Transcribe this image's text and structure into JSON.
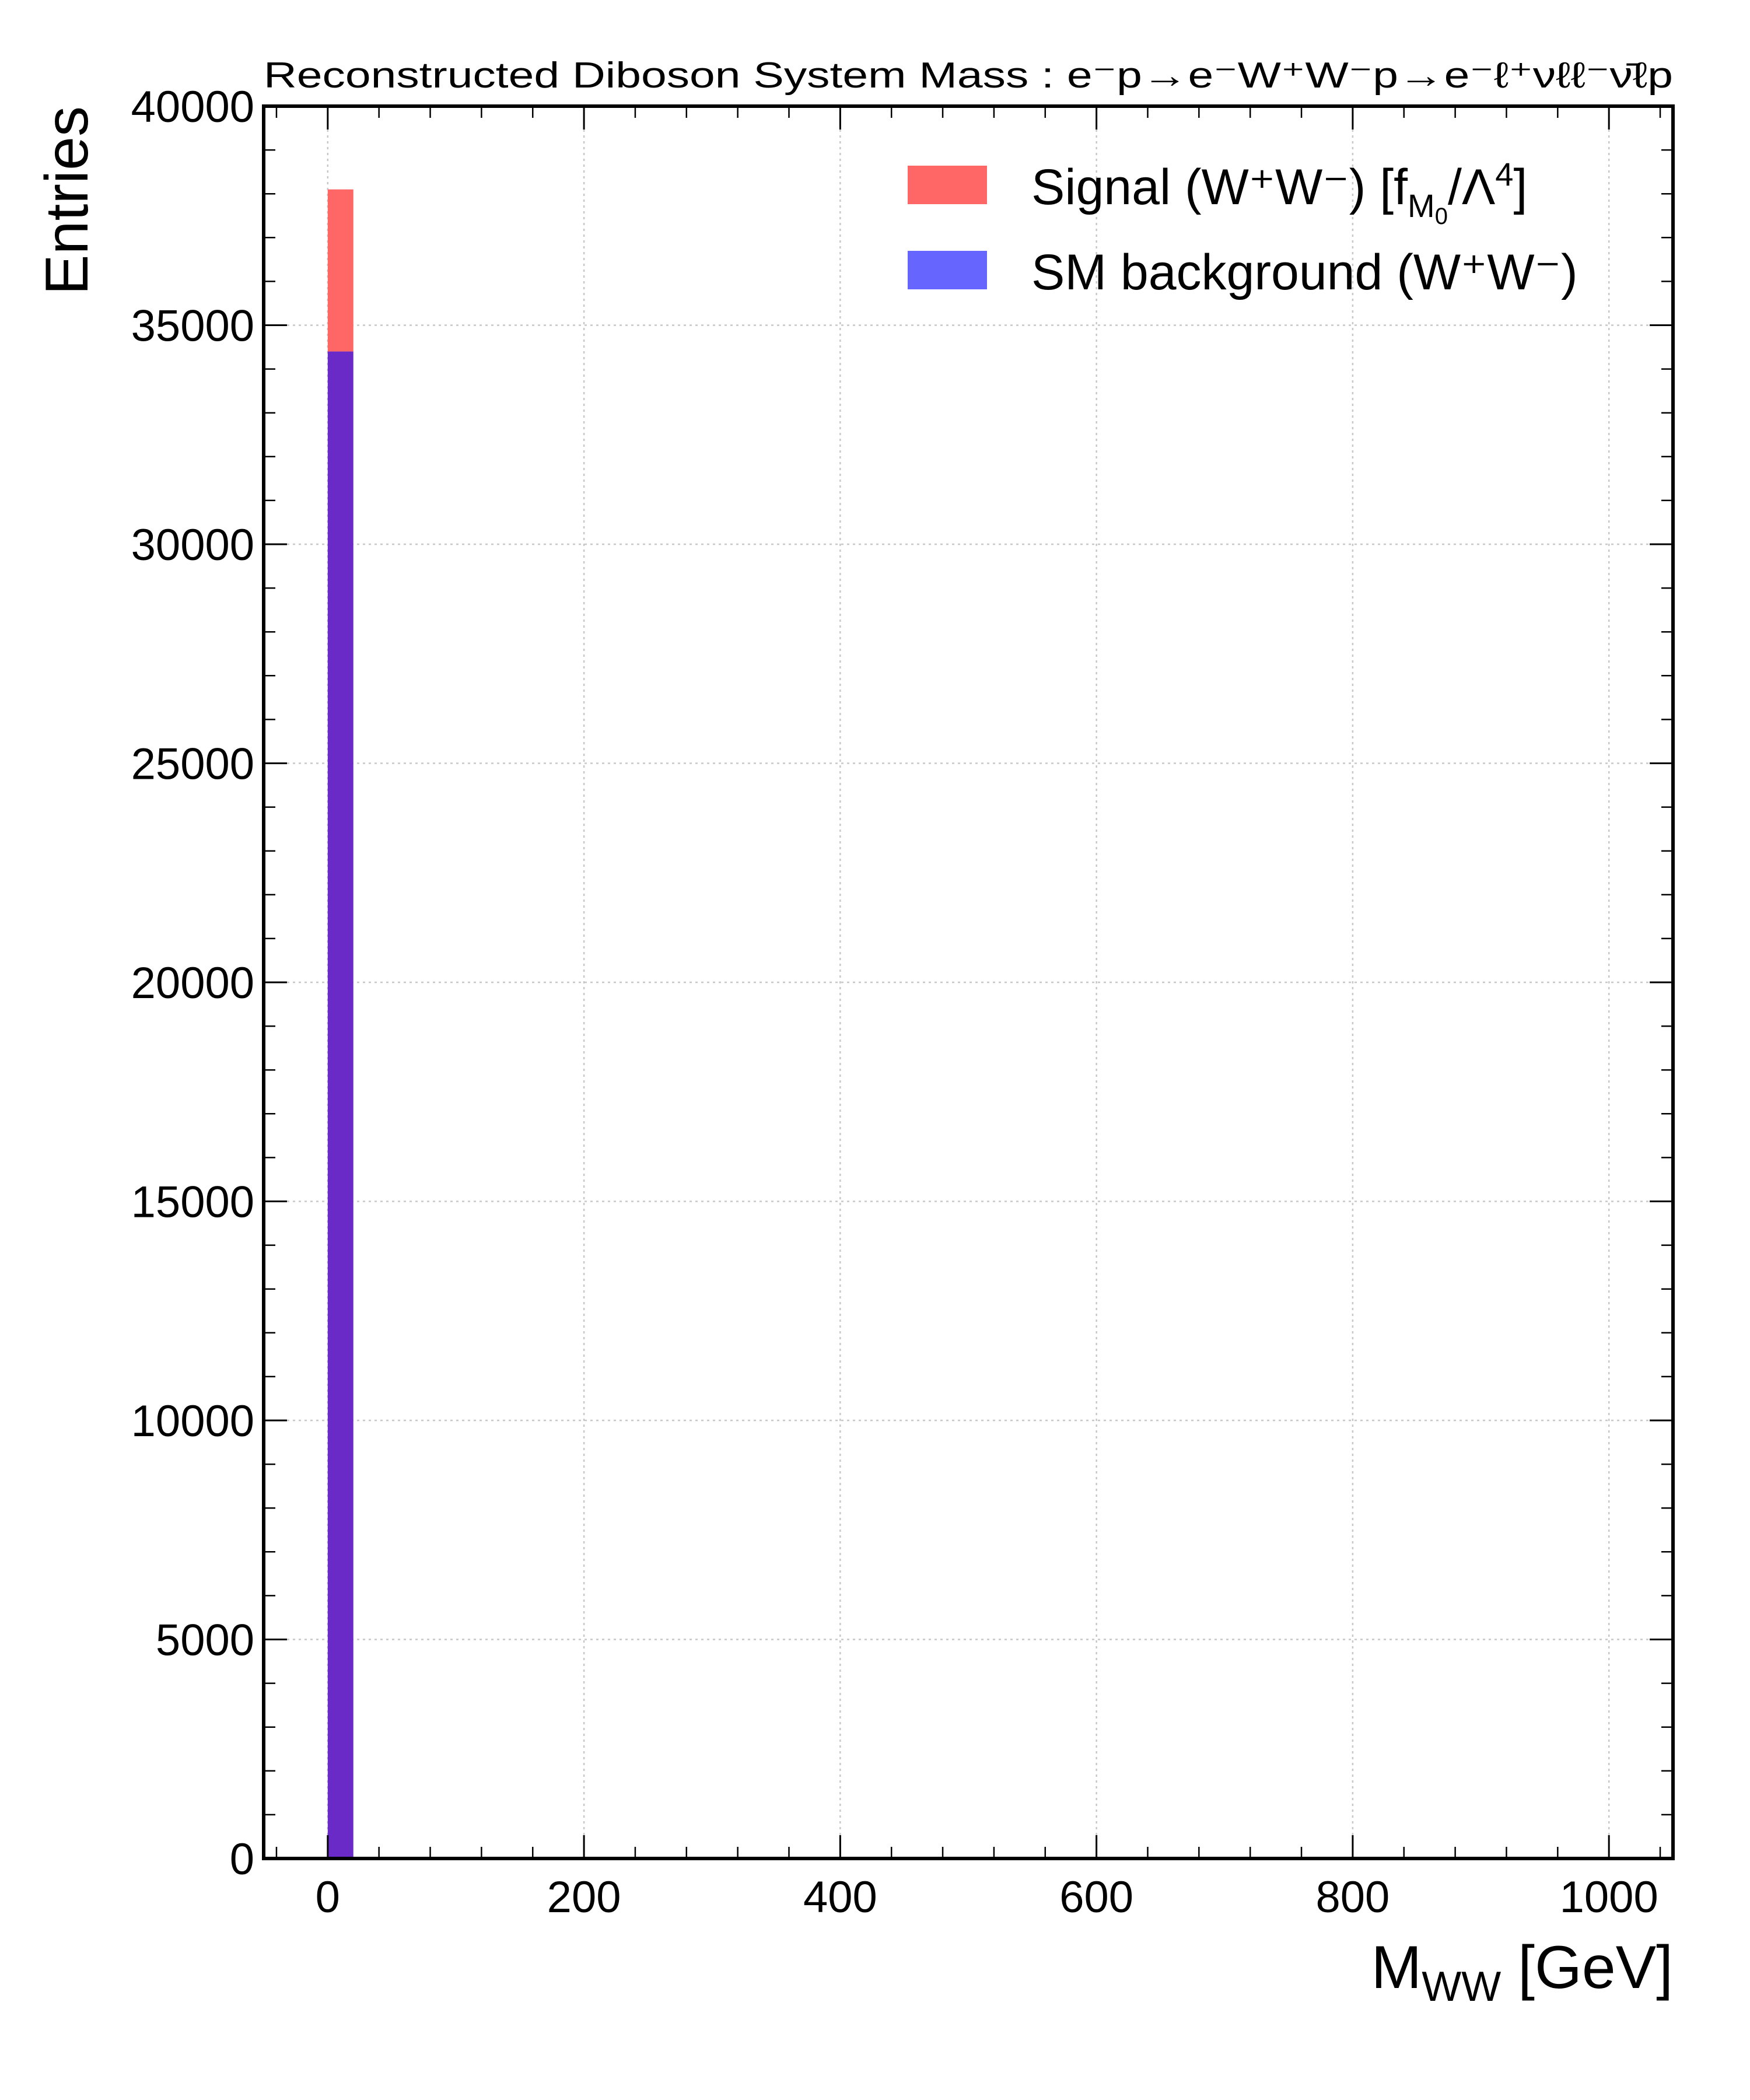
{
  "chart_data": {
    "type": "bar",
    "title": "Reconstructed Diboson System Mass : e⁻p→e⁻W⁺W⁻p→e⁻ℓ⁺νℓℓ⁻ν̄ℓp",
    "xlabel": "M_WW [GeV]",
    "xlabel_main": "M",
    "xlabel_sub": "WW",
    "xlabel_unit": " [GeV]",
    "ylabel": "Entries",
    "xlim": [
      -50,
      1050
    ],
    "ylim": [
      0,
      40000
    ],
    "x_ticks": [
      0,
      200,
      400,
      600,
      800,
      1000
    ],
    "x_tick_labels": [
      "0",
      "200",
      "400",
      "600",
      "800",
      "1000"
    ],
    "y_ticks": [
      0,
      5000,
      10000,
      15000,
      20000,
      25000,
      30000,
      35000,
      40000
    ],
    "y_tick_labels": [
      "0",
      "5000",
      "10000",
      "15000",
      "20000",
      "25000",
      "30000",
      "35000",
      "40000"
    ],
    "grid": true,
    "legend_position": "top-right",
    "series": [
      {
        "name": "Signal (W⁺W⁻) [f_M0/Λ⁴]",
        "legend_label": "Signal (W⁺W⁻) [f",
        "legend_sub": "M",
        "legend_subsub": "0",
        "legend_tail": "/Λ",
        "legend_sup": "4",
        "legend_close": "]",
        "color": "#ff6666",
        "bins": [
          {
            "x0": 0,
            "x1": 20,
            "value": 38100
          }
        ]
      },
      {
        "name": "SM background (W⁺W⁻)",
        "legend_label": "SM background (W⁺W⁻)",
        "color": "#6666ff",
        "bins": [
          {
            "x0": 0,
            "x1": 20,
            "value": 34400
          }
        ]
      }
    ],
    "overlap_color": "#6a2ac8"
  }
}
